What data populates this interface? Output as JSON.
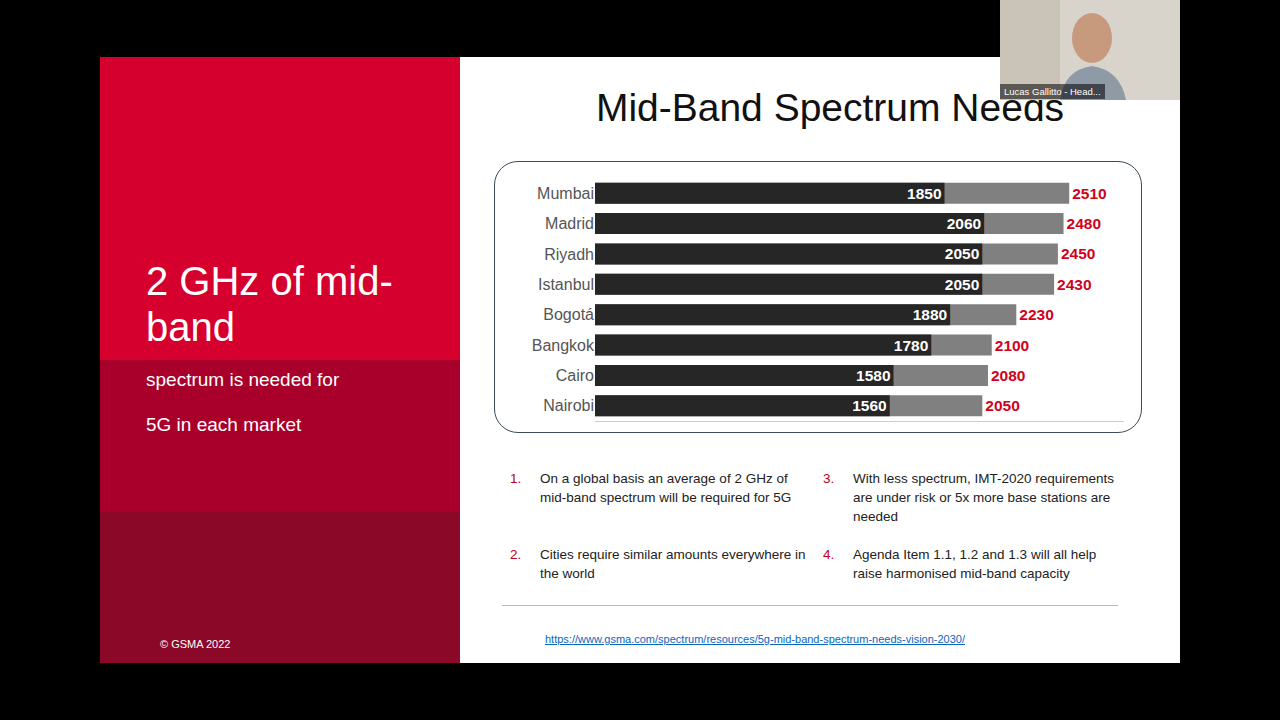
{
  "chart_data": {
    "type": "bar",
    "orientation": "horizontal",
    "stacked": false,
    "data_labels": true,
    "tick_labels": "y",
    "grid": false,
    "categories": [
      "Mumbai",
      "Madrid",
      "Riyadh",
      "Istanbul",
      "Bogotá",
      "Bangkok",
      "Cairo",
      "Nairobi"
    ],
    "series": [
      {
        "color": "#808080",
        "values": [
          2510,
          2480,
          2450,
          2430,
          2230,
          2100,
          2080,
          2050
        ]
      },
      {
        "color": "#262626",
        "values": [
          1850,
          2060,
          2050,
          2050,
          1880,
          1780,
          1580,
          1560
        ]
      }
    ],
    "xlim": [
      0,
      2800
    ],
    "xticks": []
  },
  "slide": {
    "title": "Mid-Band Spectrum Needs",
    "headline": "2 GHz of mid-band",
    "subhead_lines": [
      "spectrum is needed for",
      "5G in each market"
    ],
    "copyright": "© GSMA 2022",
    "points": [
      {
        "number": "1.",
        "text": "On a global basis an average of 2 GHz of mid-band spectrum will be required for 5G"
      },
      {
        "number": "2.",
        "text": "Cities require similar amounts everywhere in the world"
      },
      {
        "number": "3.",
        "text": "With less spectrum, IMT-2020 requirements are under risk or 5x more base stations are needed"
      },
      {
        "number": "4.",
        "text": "Agenda Item 1.1, 1.2 and 1.3 will all help raise harmonised mid-band capacity"
      }
    ],
    "link": "https://www.gsma.com/spectrum/resources/5g-mid-band-spectrum-needs-vision-2030/"
  },
  "video": {
    "speaker": "Lucas Gallitto - Head..."
  }
}
